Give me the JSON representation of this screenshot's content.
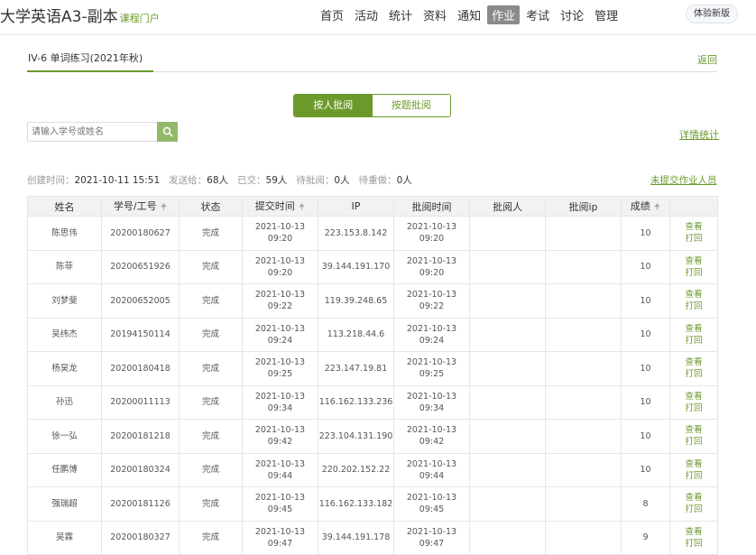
{
  "header": {
    "title": "大学英语A3-副本",
    "portal": "课程门户",
    "nav": [
      "首页",
      "活动",
      "统计",
      "资料",
      "通知",
      "作业",
      "考试",
      "讨论",
      "管理"
    ],
    "active_nav": "作业",
    "trial": "体验新版"
  },
  "sub": {
    "title": "IV-6 单词练习(2021年秋)",
    "back": "返回"
  },
  "toggle": {
    "by_person": "按人批阅",
    "by_question": "按题批阅"
  },
  "search": {
    "placeholder": "请输入学号或姓名",
    "icon": "search-icon"
  },
  "detail_stats": "详情统计",
  "info": {
    "created_label": "创建时间：",
    "created": "2021-10-11 15:51",
    "sent_label": "发送给：",
    "sent": "68人",
    "submitted_label": "已交：",
    "submitted": "59人",
    "pending_label": "待批阅：",
    "pending": "0人",
    "redo_label": "待重做：",
    "redo": "0人"
  },
  "unsubmitted": "未提交作业人员",
  "accent": "#6b9a2a",
  "table": {
    "columns": [
      "姓名",
      "学号/工号",
      "状态",
      "提交时间",
      "IP",
      "批阅时间",
      "批阅人",
      "批阅ip",
      "成绩",
      ""
    ],
    "actions": [
      "查看",
      "打回"
    ],
    "rows": [
      {
        "name": "陈思伟",
        "id": "20200180627",
        "status": "完成",
        "sd": "2021-10-13",
        "st": "09:20",
        "ip": "223.153.8.142",
        "rd": "2021-10-13",
        "rt": "09:20",
        "score": "10"
      },
      {
        "name": "陈菲",
        "id": "20200651926",
        "status": "完成",
        "sd": "2021-10-13",
        "st": "09:20",
        "ip": "39.144.191.170",
        "rd": "2021-10-13",
        "rt": "09:20",
        "score": "10"
      },
      {
        "name": "刘梦斐",
        "id": "20200652005",
        "status": "完成",
        "sd": "2021-10-13",
        "st": "09:22",
        "ip": "119.39.248.65",
        "rd": "2021-10-13",
        "rt": "09:22",
        "score": "10"
      },
      {
        "name": "吴纬杰",
        "id": "20194150114",
        "status": "完成",
        "sd": "2021-10-13",
        "st": "09:24",
        "ip": "113.218.44.6",
        "rd": "2021-10-13",
        "rt": "09:24",
        "score": "10"
      },
      {
        "name": "杨昊龙",
        "id": "20200180418",
        "status": "完成",
        "sd": "2021-10-13",
        "st": "09:25",
        "ip": "223.147.19.81",
        "rd": "2021-10-13",
        "rt": "09:25",
        "score": "10"
      },
      {
        "name": "孙迅",
        "id": "20200011113",
        "status": "完成",
        "sd": "2021-10-13",
        "st": "09:34",
        "ip": "116.162.133.236",
        "rd": "2021-10-13",
        "rt": "09:34",
        "score": "10"
      },
      {
        "name": "徐一弘",
        "id": "20200181218",
        "status": "完成",
        "sd": "2021-10-13",
        "st": "09:42",
        "ip": "223.104.131.190",
        "rd": "2021-10-13",
        "rt": "09:42",
        "score": "10"
      },
      {
        "name": "任鹏博",
        "id": "20200180324",
        "status": "完成",
        "sd": "2021-10-13",
        "st": "09:44",
        "ip": "220.202.152.22",
        "rd": "2021-10-13",
        "rt": "09:44",
        "score": "10"
      },
      {
        "name": "强瑞超",
        "id": "20200181126",
        "status": "完成",
        "sd": "2021-10-13",
        "st": "09:45",
        "ip": "116.162.133.182",
        "rd": "2021-10-13",
        "rt": "09:45",
        "score": "8"
      },
      {
        "name": "吴霖",
        "id": "20200180327",
        "status": "完成",
        "sd": "2021-10-13",
        "st": "09:47",
        "ip": "39.144.191.178",
        "rd": "2021-10-13",
        "rt": "09:47",
        "score": "9"
      }
    ]
  }
}
